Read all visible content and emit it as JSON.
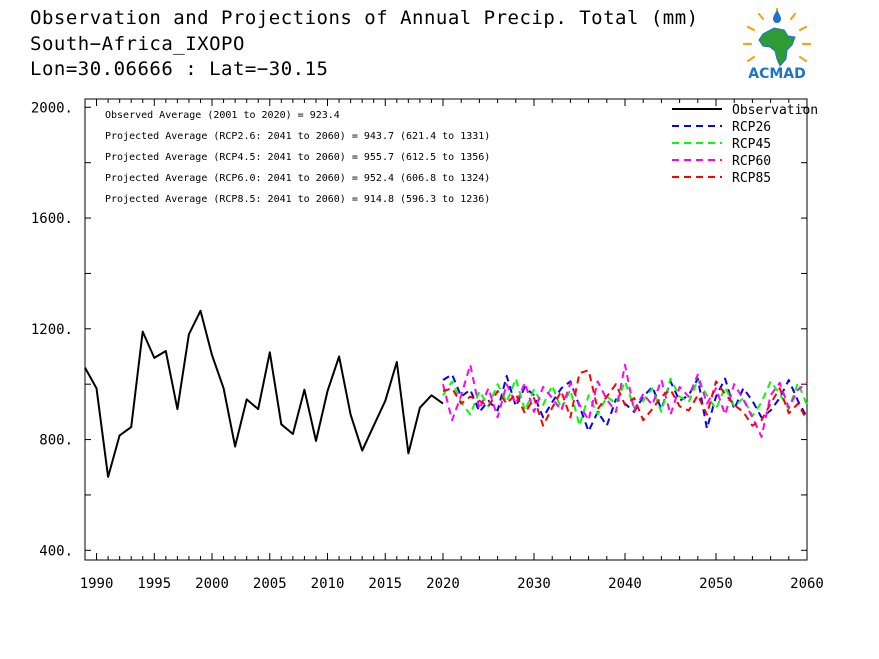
{
  "title": {
    "line1": "Observation and Projections of Annual Precip. Total (mm)",
    "line2": "South−Africa_IXOPO",
    "line3": "Lon=30.06666 : Lat=−30.15"
  },
  "logo": {
    "text": "ACMAD"
  },
  "chart_data": {
    "type": "line",
    "xlim": [
      1989,
      2060
    ],
    "ylim": [
      365,
      2030
    ],
    "x_segments": [
      {
        "from": 1989,
        "to": 2020,
        "ticks": [
          1990,
          1995,
          2000,
          2005,
          2010,
          2015,
          2020
        ]
      },
      {
        "from": 2020,
        "to": 2060,
        "ticks": [
          2030,
          2040,
          2050,
          2060
        ]
      }
    ],
    "x_tick_labels": [
      "1990",
      "1995",
      "2000",
      "2005",
      "2010",
      "2015",
      "2020",
      "2030",
      "2040",
      "2050",
      "2060"
    ],
    "y_ticks": [
      400,
      800,
      1200,
      1600,
      2000
    ],
    "y_tick_labels": [
      "400.",
      "800.",
      "1200.",
      "1600.",
      "2000."
    ],
    "y_minor_step": 200,
    "grid": false,
    "legend_position": "top-right",
    "annotations": [
      "Observed Average (2001 to 2020) = 923.4",
      "Projected Average (RCP2.6: 2041 to 2060) =  943.7 (621.4 to 1331)",
      "Projected Average (RCP4.5: 2041 to 2060) =  955.7 (612.5 to 1356)",
      "Projected Average (RCP6.0: 2041 to 2060) =  952.4 (606.8 to 1324)",
      "Projected Average (RCP8.5: 2041 to 2060) =  914.8 (596.3 to 1236)"
    ],
    "series": [
      {
        "name": "Observation",
        "color": "#000000",
        "dash": "solid",
        "x": [
          1989,
          1990,
          1991,
          1992,
          1993,
          1994,
          1995,
          1996,
          1997,
          1998,
          1999,
          2000,
          2001,
          2002,
          2003,
          2004,
          2005,
          2006,
          2007,
          2008,
          2009,
          2010,
          2011,
          2012,
          2013,
          2014,
          2015,
          2016,
          2017,
          2018,
          2019,
          2020
        ],
        "values": [
          1060,
          985,
          665,
          815,
          845,
          1190,
          1095,
          1120,
          910,
          1180,
          1265,
          1105,
          985,
          775,
          945,
          910,
          1115,
          855,
          820,
          980,
          795,
          975,
          1100,
          890,
          760,
          850,
          940,
          1080,
          750,
          915,
          960,
          930
        ]
      },
      {
        "name": "RCP26",
        "color": "#0000ff",
        "dash": "dashed",
        "x": [
          2020,
          2021,
          2022,
          2023,
          2024,
          2025,
          2026,
          2027,
          2028,
          2029,
          2030,
          2031,
          2032,
          2033,
          2034,
          2035,
          2036,
          2037,
          2038,
          2039,
          2040,
          2041,
          2042,
          2043,
          2044,
          2045,
          2046,
          2047,
          2048,
          2049,
          2050,
          2051,
          2052,
          2053,
          2054,
          2055,
          2056,
          2057,
          2058,
          2059,
          2060
        ],
        "values": [
          1015,
          1035,
          955,
          980,
          900,
          940,
          905,
          1030,
          920,
          990,
          960,
          880,
          935,
          985,
          1010,
          920,
          830,
          900,
          850,
          945,
          930,
          900,
          955,
          990,
          910,
          1010,
          940,
          960,
          1020,
          840,
          955,
          1020,
          910,
          985,
          940,
          880,
          905,
          950,
          1015,
          940,
          880
        ]
      },
      {
        "name": "RCP45",
        "color": "#00ff00",
        "dash": "dashed",
        "x": [
          2020,
          2021,
          2022,
          2023,
          2024,
          2025,
          2026,
          2027,
          2028,
          2029,
          2030,
          2031,
          2032,
          2033,
          2034,
          2035,
          2036,
          2037,
          2038,
          2039,
          2040,
          2041,
          2042,
          2043,
          2044,
          2045,
          2046,
          2047,
          2048,
          2049,
          2050,
          2051,
          2052,
          2053,
          2054,
          2055,
          2056,
          2057,
          2058,
          2059,
          2060
        ],
        "values": [
          960,
          1010,
          935,
          890,
          975,
          920,
          1000,
          935,
          1020,
          905,
          980,
          925,
          995,
          910,
          980,
          850,
          960,
          890,
          955,
          930,
          1010,
          915,
          940,
          985,
          900,
          1020,
          955,
          935,
          1015,
          960,
          910,
          990,
          920,
          950,
          885,
          935,
          1010,
          965,
          910,
          1005,
          925
        ]
      },
      {
        "name": "RCP60",
        "color": "#ff00ff",
        "dash": "dashed",
        "x": [
          2020,
          2021,
          2022,
          2023,
          2024,
          2025,
          2026,
          2027,
          2028,
          2029,
          2030,
          2031,
          2032,
          2033,
          2034,
          2035,
          2036,
          2037,
          2038,
          2039,
          2040,
          2041,
          2042,
          2043,
          2044,
          2045,
          2046,
          2047,
          2048,
          2049,
          2050,
          2051,
          2052,
          2053,
          2054,
          2055,
          2056,
          2057,
          2058,
          2059,
          2060
        ],
        "values": [
          1000,
          870,
          960,
          1070,
          910,
          985,
          880,
          1000,
          930,
          1005,
          900,
          990,
          950,
          905,
          1005,
          925,
          870,
          1010,
          945,
          900,
          1070,
          905,
          965,
          925,
          1015,
          890,
          990,
          955,
          1035,
          930,
          985,
          890,
          1000,
          945,
          880,
          810,
          960,
          1005,
          915,
          980,
          1005
        ]
      },
      {
        "name": "RCP85",
        "color": "#ff0000",
        "dash": "dashed",
        "x": [
          2020,
          2021,
          2022,
          2023,
          2024,
          2025,
          2026,
          2027,
          2028,
          2029,
          2030,
          2031,
          2032,
          2033,
          2034,
          2035,
          2036,
          2037,
          2038,
          2039,
          2040,
          2041,
          2042,
          2043,
          2044,
          2045,
          2046,
          2047,
          2048,
          2049,
          2050,
          2051,
          2052,
          2053,
          2054,
          2055,
          2056,
          2057,
          2058,
          2059,
          2060
        ],
        "values": [
          975,
          985,
          930,
          955,
          940,
          920,
          975,
          930,
          965,
          895,
          950,
          850,
          915,
          975,
          880,
          1040,
          1050,
          910,
          955,
          1000,
          925,
          950,
          870,
          910,
          955,
          980,
          920,
          905,
          960,
          890,
          1010,
          965,
          925,
          900,
          850,
          870,
          930,
          985,
          895,
          930,
          870
        ]
      }
    ]
  }
}
